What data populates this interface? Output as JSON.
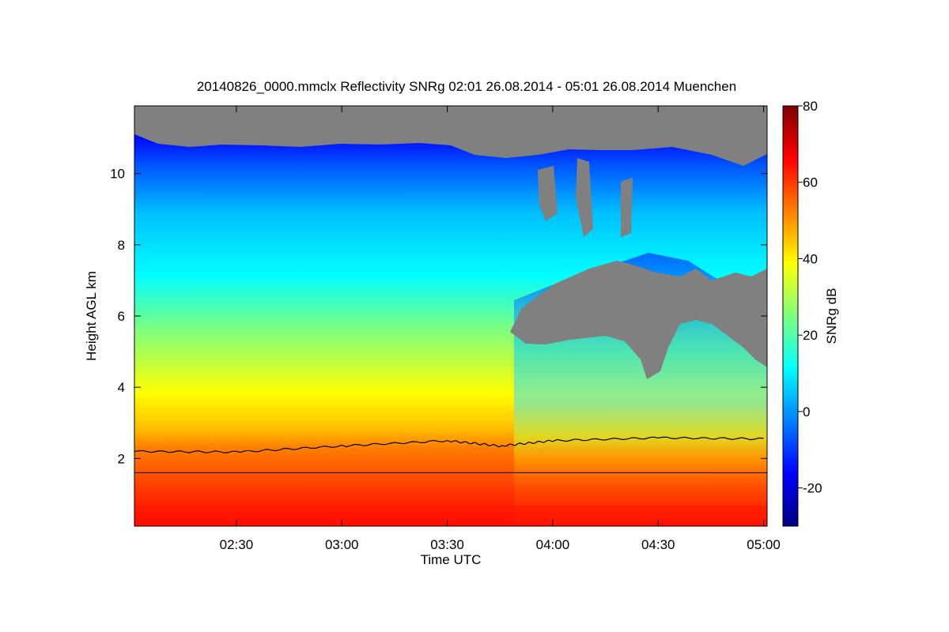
{
  "chart_data": {
    "type": "heatmap",
    "title": "20140826_0000.mmclx Reflectivity SNRg   02:01 26.08.2014 - 05:01 26.08.2014 Muenchen",
    "xlabel": "Time UTC",
    "ylabel": "Height AGL km",
    "colorbar_label": "SNRg dB",
    "x_range": [
      "02:01",
      "05:01"
    ],
    "x_ticks": [
      "02:30",
      "03:00",
      "03:30",
      "04:00",
      "04:30",
      "05:00"
    ],
    "y_range": [
      0.1,
      11.9
    ],
    "y_ticks": [
      2,
      4,
      6,
      8,
      10
    ],
    "colorbar_range": [
      -30,
      80
    ],
    "colorbar_ticks": [
      -20,
      0,
      20,
      40,
      60,
      80
    ],
    "colormap": [
      "#00007f",
      "#0000ff",
      "#007fff",
      "#00ffff",
      "#7fff7f",
      "#ffff00",
      "#ff7f00",
      "#ff0000",
      "#7f0000"
    ],
    "no_signal_color": "#808080",
    "horizontal_reference_line_km": 1.6,
    "profile_line_km": [
      {
        "time": "02:01",
        "height": 2.2
      },
      {
        "time": "02:30",
        "height": 2.18
      },
      {
        "time": "03:00",
        "height": 2.35
      },
      {
        "time": "03:30",
        "height": 2.5
      },
      {
        "time": "03:45",
        "height": 2.35
      },
      {
        "time": "04:00",
        "height": 2.5
      },
      {
        "time": "04:30",
        "height": 2.58
      },
      {
        "time": "05:00",
        "height": 2.55
      }
    ]
  }
}
